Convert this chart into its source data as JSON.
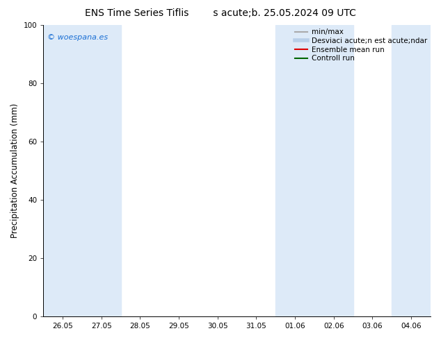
{
  "title_left": "ENS Time Series Tiflis",
  "title_right": "s acute;b. 25.05.2024 09 UTC",
  "ylabel": "Precipitation Accumulation (mm)",
  "ylim": [
    0,
    100
  ],
  "yticks": [
    0,
    20,
    40,
    60,
    80,
    100
  ],
  "xtick_positions": [
    0,
    1,
    2,
    3,
    4,
    5,
    6,
    7,
    8,
    9
  ],
  "xtick_labels": [
    "26.05",
    "27.05",
    "28.05",
    "29.05",
    "30.05",
    "31.05",
    "01.06",
    "02.06",
    "03.06",
    "04.06"
  ],
  "xlim": [
    -0.5,
    9.5
  ],
  "watermark": "© woespana.es",
  "watermark_color": "#1a6fd4",
  "background_color": "#ffffff",
  "shaded_bands": [
    {
      "x_start": -0.5,
      "x_end": 0.5,
      "color": "#ddeaf8"
    },
    {
      "x_start": 0.5,
      "x_end": 1.5,
      "color": "#ddeaf8"
    },
    {
      "x_start": 5.5,
      "x_end": 6.5,
      "color": "#ddeaf8"
    },
    {
      "x_start": 6.5,
      "x_end": 7.5,
      "color": "#ddeaf8"
    },
    {
      "x_start": 8.5,
      "x_end": 9.5,
      "color": "#ddeaf8"
    }
  ],
  "legend_entries": [
    {
      "label": "min/max",
      "color": "#aaaaaa",
      "lw": 1.5
    },
    {
      "label": "Desviaci acute;n est acute;ndar",
      "color": "#b8cfe8",
      "lw": 4
    },
    {
      "label": "Ensemble mean run",
      "color": "#dd0000",
      "lw": 1.5
    },
    {
      "label": "Controll run",
      "color": "#006600",
      "lw": 1.5
    }
  ],
  "title_fontsize": 10,
  "tick_fontsize": 7.5,
  "ylabel_fontsize": 8.5,
  "legend_fontsize": 7.5,
  "watermark_fontsize": 8
}
